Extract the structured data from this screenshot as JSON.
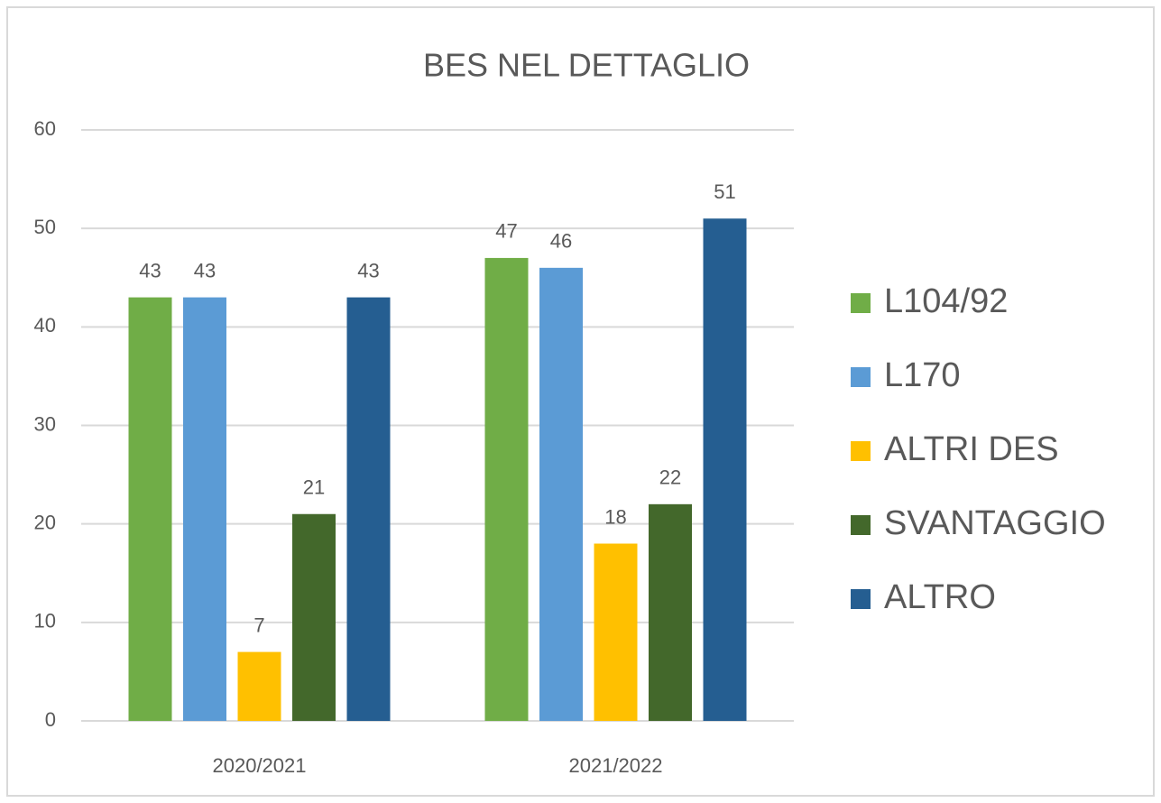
{
  "chart_data": {
    "type": "bar",
    "title": "BES NEL DETTAGLIO",
    "categories": [
      "2020/2021",
      "2021/2022"
    ],
    "series": [
      {
        "name": "L104/92",
        "color": "#70ad47",
        "values": [
          43,
          47
        ]
      },
      {
        "name": "L170",
        "color": "#5b9bd5",
        "values": [
          43,
          46
        ]
      },
      {
        "name": "ALTRI DES",
        "color": "#ffc000",
        "values": [
          7,
          18
        ]
      },
      {
        "name": "SVANTAGGIO",
        "color": "#43682b",
        "values": [
          21,
          22
        ]
      },
      {
        "name": "ALTRO",
        "color": "#255e91",
        "values": [
          43,
          51
        ]
      }
    ],
    "ylim": [
      0,
      60
    ],
    "yticks": [
      0,
      10,
      20,
      30,
      40,
      50,
      60
    ],
    "grid": true,
    "legend": "right"
  }
}
